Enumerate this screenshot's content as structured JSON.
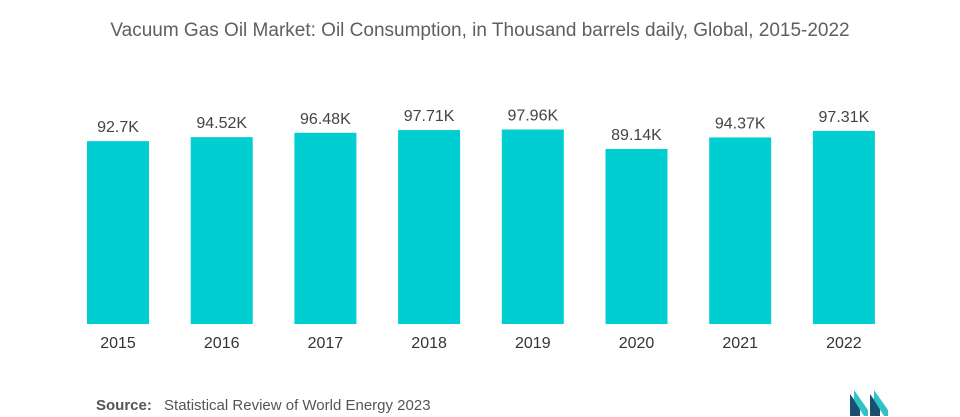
{
  "chart_data": {
    "type": "bar",
    "title": "Vacuum Gas Oil Market: Oil Consumption, in Thousand barrels daily, Global, 2015-2022",
    "categories": [
      "2015",
      "2016",
      "2017",
      "2018",
      "2019",
      "2020",
      "2021",
      "2022"
    ],
    "values": [
      92.7,
      94.52,
      96.48,
      97.71,
      97.96,
      89.14,
      94.37,
      97.31
    ],
    "data_labels": [
      "92.7K",
      "94.52K",
      "96.48K",
      "97.71K",
      "97.96K",
      "89.14K",
      "94.37K",
      "97.31K"
    ],
    "xlabel": "",
    "ylabel": "",
    "ylim": [
      0,
      100
    ],
    "grid": false,
    "legend": "none",
    "bar_color": "#00CED1"
  },
  "source": {
    "label": "Source:",
    "text": "Statistical Review of World Energy 2023"
  },
  "logo": {
    "icon": "mordor-intelligence-logo-icon",
    "color": "#1B4F72",
    "accent": "#2EC4C6"
  }
}
